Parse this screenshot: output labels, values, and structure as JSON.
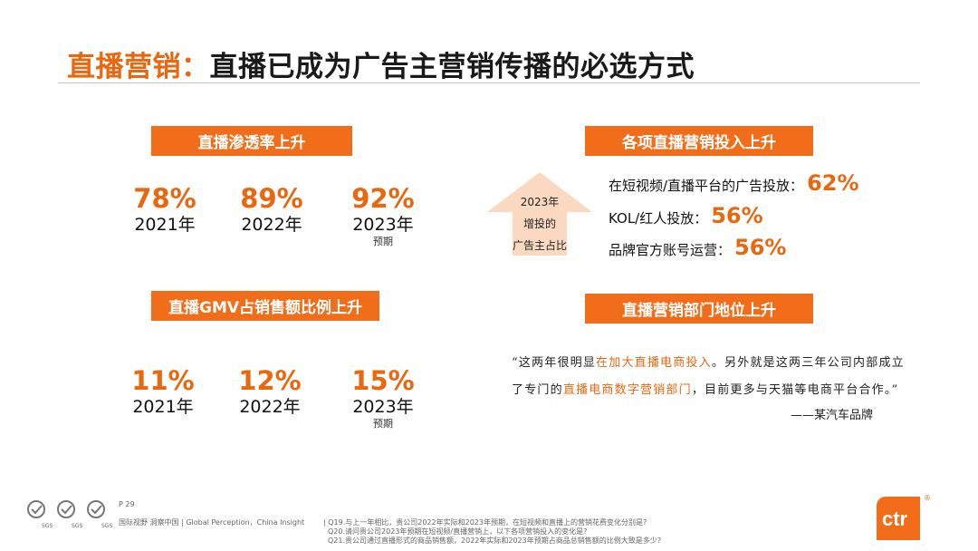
{
  "title": {
    "accent": "直播营销：",
    "main": "直播已成为广告主营销传播的必选方式"
  },
  "penetration": {
    "banner": "直播渗透率上升",
    "stats": [
      {
        "pct": "78%",
        "year": "2021年",
        "note": ""
      },
      {
        "pct": "89%",
        "year": "2022年",
        "note": ""
      },
      {
        "pct": "92%",
        "year": "2023年",
        "note": "预期"
      }
    ]
  },
  "gmv": {
    "banner": "直播GMV占销售额比例上升",
    "stats": [
      {
        "pct": "11%",
        "year": "2021年",
        "note": ""
      },
      {
        "pct": "12%",
        "year": "2022年",
        "note": ""
      },
      {
        "pct": "15%",
        "year": "2023年",
        "note": "预期"
      }
    ]
  },
  "arrow": {
    "line1": "2023年",
    "line2": "增投的",
    "line3": "广告主占比"
  },
  "investment": {
    "banner": "各项直播营销投入上升",
    "items": [
      {
        "label": "在短视频/直播平台的广告投放：",
        "value": "62%"
      },
      {
        "label": "KOL/红人投放：",
        "value": "56%"
      },
      {
        "label": "品牌官方账号运营：",
        "value": "56%"
      }
    ]
  },
  "department": {
    "banner": "直播营销部门地位上升",
    "quote": {
      "p1": "“这两年很明显",
      "h1": "在加大直播电商投入",
      "p2": "。另外就是这两三年公司内部成立了专门的",
      "h2": "直播电商数字营销部门",
      "p3": "，目前更多与天猫等电商平台合作。”"
    },
    "source": "——某汽车品牌"
  },
  "footer": {
    "page": "P 29",
    "sgs_label": "SGS",
    "source": "国际视野  洞察中国 | Global Perception，China Insight",
    "q1": "| Q19.与上一年相比，贵公司2022年实际和2023年预期，在短视频和直播上的营销花费变化分别是?",
    "q2": "Q20.请问贵公司2023年预期在短视频/直播营销上，以下各项营销投入的变化是?",
    "q3": "Q21.贵公司通过直播形式的商品销售额，2022年实际和2023年预期占商品总销售额的比例大致是多少?"
  },
  "logo": {
    "text": "ctr",
    "reg": "®"
  },
  "colors": {
    "accent": "#e8670f",
    "banner": "#f26d1a",
    "arrow": "#fbd9c0"
  }
}
